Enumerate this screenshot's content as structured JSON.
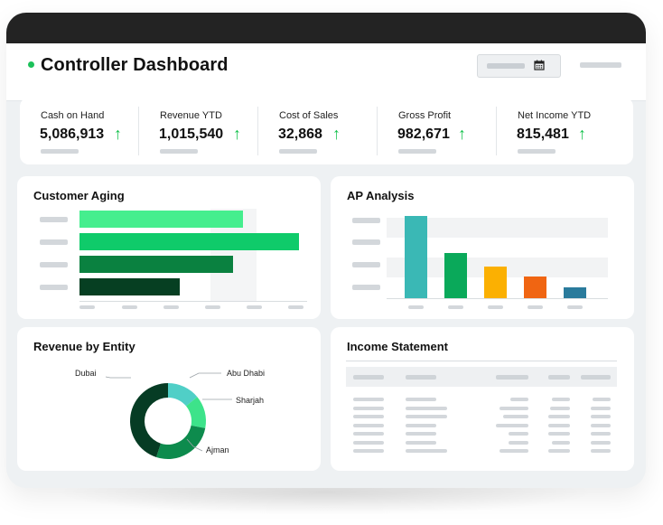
{
  "header": {
    "title": "Controller Dashboard",
    "status_color": "#1cc15a",
    "calendar_icon": "calendar-icon"
  },
  "kpis": [
    {
      "label": "Cash on Hand",
      "value": "5,086,913",
      "trend": "up"
    },
    {
      "label": "Revenue YTD",
      "value": "1,015,540",
      "trend": "up"
    },
    {
      "label": "Cost of Sales",
      "value": "32,868",
      "trend": "up"
    },
    {
      "label": "Gross Profit",
      "value": "982,671",
      "trend": "up"
    },
    {
      "label": "Net Income YTD",
      "value": "815,481",
      "trend": "up"
    }
  ],
  "trend_arrow": "↑",
  "panels": {
    "customer_aging": {
      "title": "Customer Aging"
    },
    "ap_analysis": {
      "title": "AP Analysis"
    },
    "revenue_by_entity": {
      "title": "Revenue by Entity"
    },
    "income_statement": {
      "title": "Income Statement"
    }
  },
  "chart_data": [
    {
      "type": "bar",
      "orientation": "horizontal",
      "title": "Customer Aging",
      "values": [
        67,
        90,
        63,
        41
      ],
      "xlim": [
        0,
        100
      ],
      "colors": [
        "#45ee8e",
        "#0fcb6a",
        "#0a8140",
        "#063f22"
      ]
    },
    {
      "type": "bar",
      "title": "AP Analysis",
      "values": [
        91,
        50,
        35,
        24,
        12
      ],
      "ylim": [
        0,
        100
      ],
      "colors": [
        "#3ab8b5",
        "#0aa95a",
        "#fbb002",
        "#f06512",
        "#2a7b9c"
      ]
    },
    {
      "type": "pie",
      "title": "Revenue by Entity",
      "categories": [
        "Abu Dhabi",
        "Sharjah",
        "Ajman",
        "Dubai"
      ],
      "values": [
        14,
        14,
        27,
        45
      ],
      "colors": [
        "#50cfc7",
        "#3de38a",
        "#0d8b4d",
        "#063c24"
      ]
    }
  ]
}
